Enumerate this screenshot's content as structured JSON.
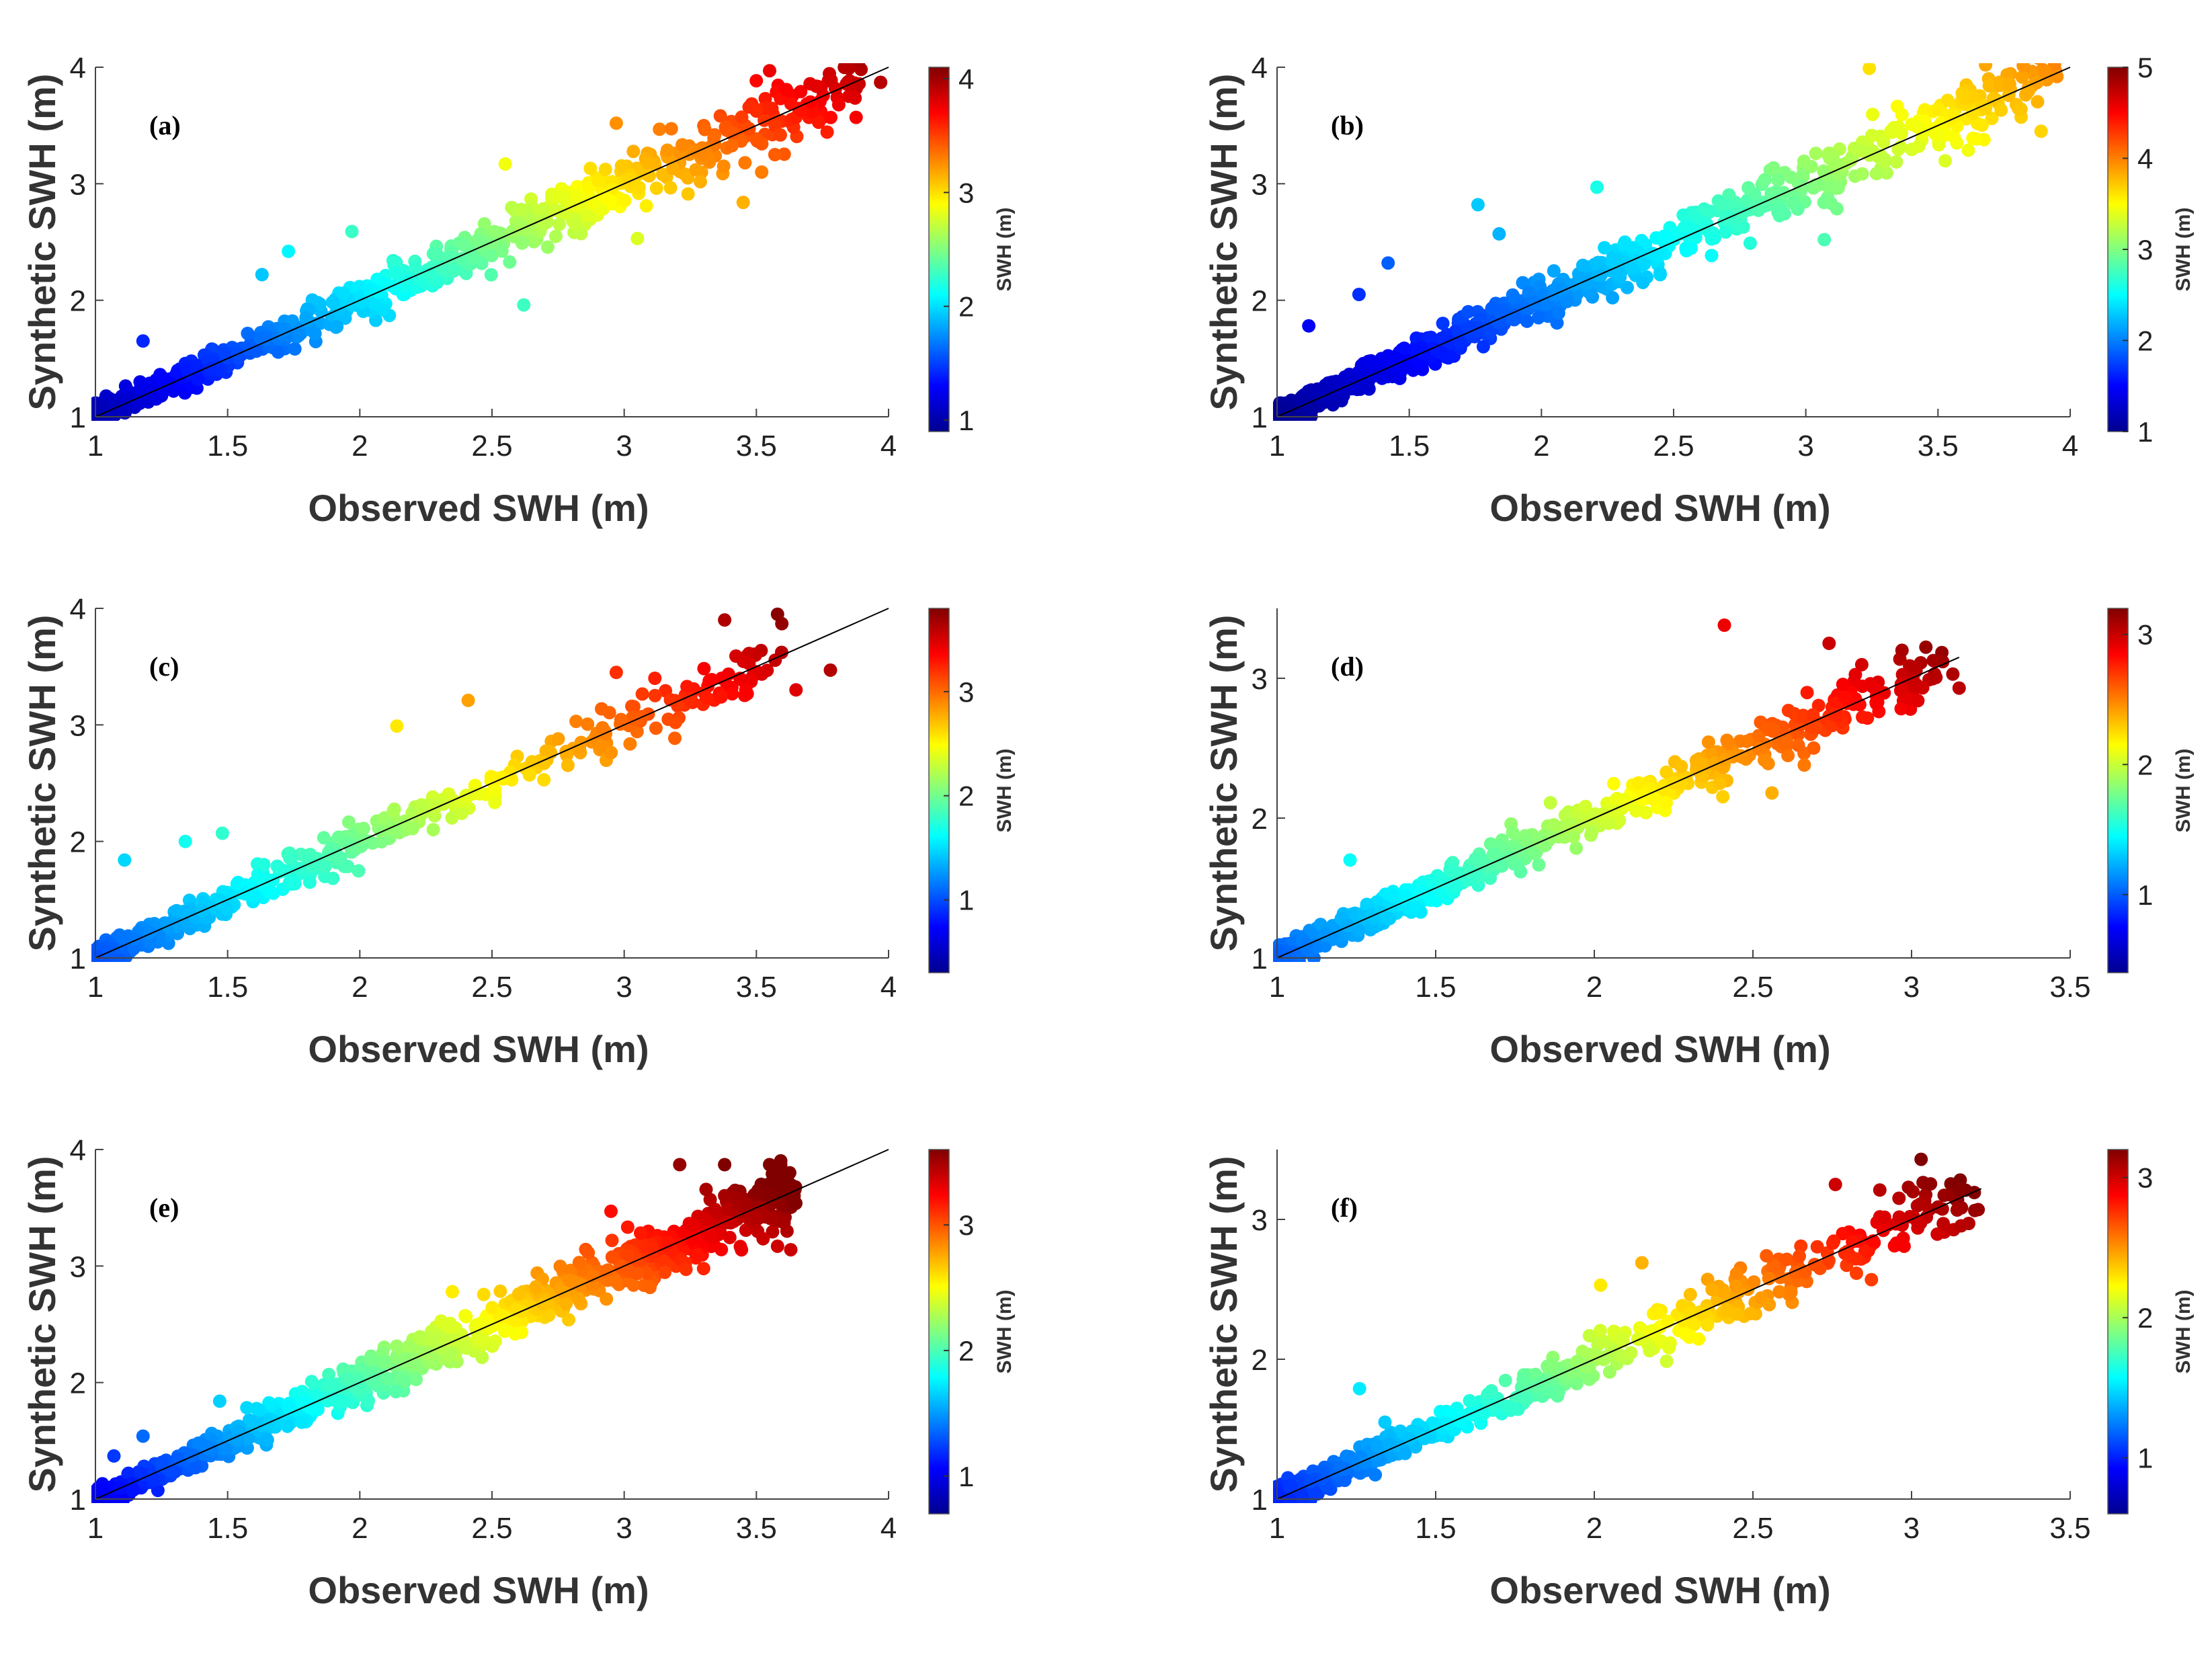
{
  "colors": {
    "line": "#000000",
    "axis": "#444444",
    "colormap": [
      "#00008f",
      "#0000ff",
      "#0080ff",
      "#00ffff",
      "#80ff80",
      "#ffff00",
      "#ff8000",
      "#ff0000",
      "#800000"
    ]
  },
  "chart_data": [
    {
      "type": "scatter",
      "panel_label": "(a)",
      "xlabel": "Observed SWH (m)",
      "ylabel": "Synthetic SWH (m)",
      "xlim": [
        1,
        4
      ],
      "ylim": [
        1,
        4
      ],
      "xticks": [
        "1",
        "1.5",
        "2",
        "2.5",
        "3",
        "3.5",
        "4"
      ],
      "yticks": [
        "1",
        "2",
        "3",
        "4"
      ],
      "fit_line": [
        [
          1,
          1
        ],
        [
          4,
          4
        ]
      ],
      "colorbar": {
        "label": "SWH (m)",
        "range": [
          0.9,
          4.1
        ],
        "ticks": [
          "1",
          "2",
          "3",
          "4"
        ]
      },
      "highlight_points": [
        [
          1.18,
          1.65
        ],
        [
          1.63,
          2.22
        ],
        [
          1.73,
          2.42
        ],
        [
          1.97,
          2.59
        ],
        [
          2.62,
          1.96
        ],
        [
          2.55,
          3.17
        ],
        [
          2.97,
          3.52
        ],
        [
          3.05,
          2.53
        ],
        [
          3.45,
          2.84
        ],
        [
          3.55,
          3.97
        ],
        [
          3.85,
          3.99
        ],
        [
          3.97,
          3.87
        ],
        [
          3.57,
          3.25
        ],
        [
          3.52,
          3.1
        ]
      ],
      "outliers_count": 3
    },
    {
      "type": "scatter",
      "panel_label": "(b)",
      "xlabel": "Observed SWH (m)",
      "ylabel": "Synthetic SWH (m)",
      "xlim": [
        1,
        4
      ],
      "ylim": [
        1,
        4
      ],
      "xticks": [
        "1",
        "1.5",
        "2",
        "2.5",
        "3",
        "3.5",
        "4"
      ],
      "yticks": [
        "1",
        "2",
        "3",
        "4"
      ],
      "fit_line": [
        [
          1,
          1
        ],
        [
          4,
          4
        ]
      ],
      "colorbar": {
        "label": "SWH (m)",
        "range": [
          1,
          5
        ],
        "ticks": [
          "1",
          "2",
          "3",
          "4",
          "5"
        ]
      },
      "highlight_points": [
        [
          1.12,
          1.78
        ],
        [
          1.31,
          2.05
        ],
        [
          1.42,
          2.32
        ],
        [
          1.76,
          2.82
        ],
        [
          1.84,
          2.57
        ],
        [
          2.21,
          2.97
        ],
        [
          3.07,
          2.52
        ],
        [
          3.24,
          3.99
        ],
        [
          3.68,
          4.02
        ],
        [
          3.89,
          3.45
        ],
        [
          3.95,
          3.92
        ],
        [
          3.42,
          3.49
        ]
      ],
      "outliers_count": 4
    },
    {
      "type": "scatter",
      "panel_label": "(c)",
      "xlabel": "Observed SWH (m)",
      "ylabel": "Synthetic SWH (m)",
      "xlim": [
        1,
        4
      ],
      "ylim": [
        1,
        4
      ],
      "xticks": [
        "1",
        "1.5",
        "2",
        "2.5",
        "3",
        "3.5",
        "4"
      ],
      "yticks": [
        "1",
        "2",
        "3",
        "4"
      ],
      "fit_line": [
        [
          1,
          1
        ],
        [
          4,
          4
        ]
      ],
      "colorbar": {
        "label": "SWH (m)",
        "range": [
          0.3,
          3.8
        ],
        "ticks": [
          "1",
          "2",
          "3"
        ]
      },
      "highlight_points": [
        [
          1.11,
          1.84
        ],
        [
          1.34,
          2.0
        ],
        [
          1.48,
          2.07
        ],
        [
          2.14,
          2.99
        ],
        [
          2.41,
          3.21
        ],
        [
          2.97,
          3.45
        ],
        [
          3.38,
          3.9
        ],
        [
          3.58,
          3.95
        ],
        [
          3.65,
          3.3
        ],
        [
          3.78,
          3.47
        ],
        [
          3.46,
          3.3
        ]
      ],
      "outliers_count": 3
    },
    {
      "type": "scatter",
      "panel_label": "(d)",
      "xlabel": "Observed SWH (m)",
      "ylabel": "Synthetic SWH (m)",
      "xlim": [
        1,
        3.5
      ],
      "ylim": [
        1,
        3.5
      ],
      "xticks": [
        "1",
        "1.5",
        "2",
        "2.5",
        "3",
        "3.5"
      ],
      "yticks": [
        "1",
        "2",
        "3"
      ],
      "fit_line": [
        [
          1,
          1
        ],
        [
          3.15,
          3.15
        ]
      ],
      "colorbar": {
        "label": "SWH (m)",
        "range": [
          0.4,
          3.2
        ],
        "ticks": [
          "1",
          "2",
          "3"
        ]
      },
      "highlight_points": [
        [
          1.23,
          1.7
        ],
        [
          2.41,
          3.38
        ],
        [
          2.56,
          2.18
        ],
        [
          2.74,
          3.25
        ],
        [
          2.97,
          3.2
        ],
        [
          3.02,
          2.84
        ],
        [
          3.13,
          3.03
        ],
        [
          3.15,
          2.93
        ]
      ],
      "outliers_count": 2
    },
    {
      "type": "scatter",
      "panel_label": "(e)",
      "xlabel": "Observed SWH (m)",
      "ylabel": "Synthetic SWH (m)",
      "xlim": [
        1,
        4
      ],
      "ylim": [
        1,
        4
      ],
      "xticks": [
        "1",
        "1.5",
        "2",
        "2.5",
        "3",
        "3.5",
        "4"
      ],
      "yticks": [
        "1",
        "2",
        "3",
        "4"
      ],
      "fit_line": [
        [
          1,
          1
        ],
        [
          4,
          4
        ]
      ],
      "colorbar": {
        "label": "SWH (m)",
        "range": [
          0.7,
          3.6
        ],
        "ticks": [
          "1",
          "2",
          "3"
        ]
      },
      "highlight_points": [
        [
          1.07,
          1.37
        ],
        [
          1.18,
          1.54
        ],
        [
          1.47,
          1.84
        ],
        [
          2.35,
          2.78
        ],
        [
          2.83,
          3.03
        ],
        [
          2.95,
          3.47
        ],
        [
          3.21,
          3.87
        ],
        [
          3.38,
          3.87
        ],
        [
          3.55,
          3.87
        ],
        [
          3.58,
          3.17
        ],
        [
          3.63,
          3.14
        ],
        [
          3.62,
          3.65
        ]
      ],
      "outliers_count": 3
    },
    {
      "type": "scatter",
      "panel_label": "(f)",
      "xlabel": "Observed SWH (m)",
      "ylabel": "Synthetic SWH (m)",
      "xlim": [
        1,
        3.5
      ],
      "ylim": [
        1,
        3.5
      ],
      "xticks": [
        "1",
        "1.5",
        "2",
        "2.5",
        "3",
        "3.5"
      ],
      "yticks": [
        "1",
        "2",
        "3"
      ],
      "fit_line": [
        [
          1,
          1
        ],
        [
          3.22,
          3.22
        ]
      ],
      "colorbar": {
        "label": "SWH (m)",
        "range": [
          0.6,
          3.2
        ],
        "ticks": [
          "1",
          "2",
          "3"
        ]
      },
      "highlight_points": [
        [
          1.26,
          1.79
        ],
        [
          1.34,
          1.55
        ],
        [
          2.02,
          2.53
        ],
        [
          2.15,
          2.69
        ],
        [
          2.76,
          3.25
        ],
        [
          2.9,
          3.21
        ],
        [
          3.03,
          3.43
        ],
        [
          3.1,
          2.97
        ],
        [
          3.15,
          3.21
        ],
        [
          3.21,
          3.07
        ],
        [
          2.62,
          2.48
        ]
      ],
      "outliers_count": 2
    }
  ]
}
